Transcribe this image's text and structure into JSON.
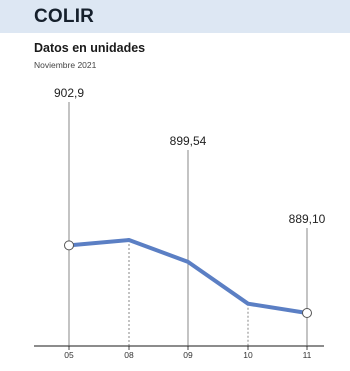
{
  "header": {
    "title": "COLIR"
  },
  "chart_data": {
    "type": "line",
    "title": "Datos en unidades",
    "subtitle": "Noviembre 2021",
    "xlabel": "",
    "ylabel": "",
    "categories": [
      "05",
      "08",
      "09",
      "10",
      "11"
    ],
    "series": [
      {
        "values": [
          902.9,
          904.0,
          899.54,
          891.0,
          889.1
        ]
      }
    ],
    "data_labels": [
      {
        "index": 0,
        "text": "902,9"
      },
      {
        "index": 2,
        "text": "899,54"
      },
      {
        "index": 4,
        "text": "889,10"
      }
    ],
    "markers_at": [
      0,
      4
    ],
    "ylim": [
      885,
      915
    ],
    "grid": false,
    "legend": "none",
    "line_color": "#5b7fc4",
    "header_color": "#dde7f3"
  }
}
